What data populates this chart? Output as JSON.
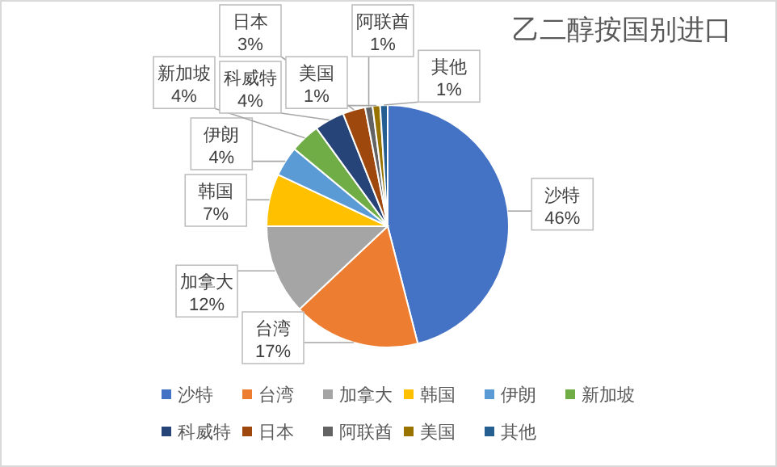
{
  "chart_data": {
    "type": "pie",
    "title": "乙二醇按国别进口",
    "categories": [
      "沙特",
      "台湾",
      "加拿大",
      "韩国",
      "伊朗",
      "新加坡",
      "科威特",
      "日本",
      "阿联酋",
      "美国",
      "其他"
    ],
    "values": [
      46,
      17,
      12,
      7,
      4,
      4,
      4,
      3,
      1,
      1,
      1
    ],
    "colors": [
      "#4472c4",
      "#ed7d31",
      "#a5a5a5",
      "#ffc000",
      "#5b9bd5",
      "#70ad47",
      "#264478",
      "#9e480e",
      "#636363",
      "#997300",
      "#255e91"
    ],
    "value_labels": [
      "46%",
      "17%",
      "12%",
      "7%",
      "4%",
      "4%",
      "4%",
      "3%",
      "1%",
      "1%",
      "1%"
    ],
    "legend": "bottom"
  }
}
